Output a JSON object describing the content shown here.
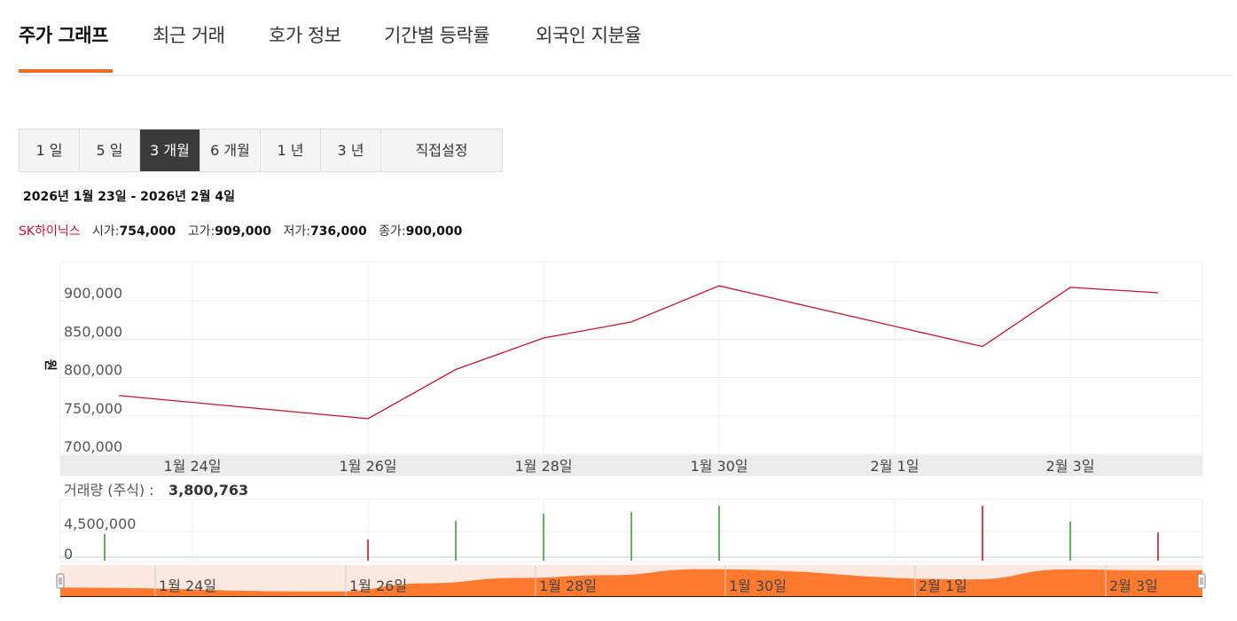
{
  "tabs": [
    {
      "label": "주가 그래프",
      "active": true
    },
    {
      "label": "최근 거래",
      "active": false
    },
    {
      "label": "호가 정보",
      "active": false
    },
    {
      "label": "기간별 등락률",
      "active": false
    },
    {
      "label": "외국인 지분율",
      "active": false
    }
  ],
  "periods": [
    {
      "label": "1 일",
      "selected": false
    },
    {
      "label": "5 일",
      "selected": false
    },
    {
      "label": "3 개월",
      "selected": true
    },
    {
      "label": "6 개월",
      "selected": false
    },
    {
      "label": "1 년",
      "selected": false
    },
    {
      "label": "3 년",
      "selected": false
    },
    {
      "label": "직접설정",
      "selected": false
    }
  ],
  "date_range": "2026년 1월 23일 - 2026년 2월 4일",
  "stock": {
    "name": "SK하이닉스",
    "open_label": "시가:",
    "open": "754,000",
    "high_label": "고가:",
    "high": "909,000",
    "low_label": "저가:",
    "low": "736,000",
    "close_label": "종가:",
    "close": "900,000"
  },
  "volume_info": {
    "label": "거래량 (주식) :",
    "value": "3,800,763"
  },
  "colors": {
    "accent": "#f26a21",
    "price_line": "#c8102e",
    "up": "#2a9d2a",
    "down": "#d0021b",
    "navigator_fill": "#ff7a2f"
  },
  "chart_data": [
    {
      "type": "line",
      "title": "",
      "ylabel": "원",
      "x": [
        "2026-01-23",
        "2026-01-26",
        "2026-01-27",
        "2026-01-28",
        "2026-01-29",
        "2026-01-30",
        "2026-02-02",
        "2026-02-03",
        "2026-02-04"
      ],
      "values": [
        766000,
        736000,
        800000,
        841000,
        862000,
        909000,
        830000,
        907000,
        900000
      ],
      "x_ticks": [
        "1월 24일",
        "1월 26일",
        "1월 28일",
        "1월 30일",
        "2월 1일",
        "2월 3일"
      ],
      "y_ticks": [
        "700,000",
        "750,000",
        "800,000",
        "850,000",
        "900,000"
      ],
      "ylim": [
        700000,
        920000
      ],
      "grid": true
    },
    {
      "type": "bar",
      "title": "",
      "x": [
        "2026-01-23",
        "2026-01-26",
        "2026-01-27",
        "2026-01-28",
        "2026-01-29",
        "2026-01-30",
        "2026-02-02",
        "2026-02-03",
        "2026-02-04"
      ],
      "values": [
        3400000,
        2700000,
        5100000,
        6000000,
        6200000,
        7000000,
        7000000,
        5000000,
        3600000
      ],
      "direction": [
        "up",
        "down",
        "up",
        "up",
        "up",
        "up",
        "down",
        "up",
        "down"
      ],
      "y_ticks": [
        "0",
        "4,500,000"
      ],
      "ylim": [
        0,
        7800000
      ],
      "grid": true
    }
  ],
  "navigator": {
    "x_ticks": [
      "1월 24일",
      "1월 26일",
      "1월 28일",
      "1월 30일",
      "2월 1일",
      "2월 3일"
    ]
  }
}
